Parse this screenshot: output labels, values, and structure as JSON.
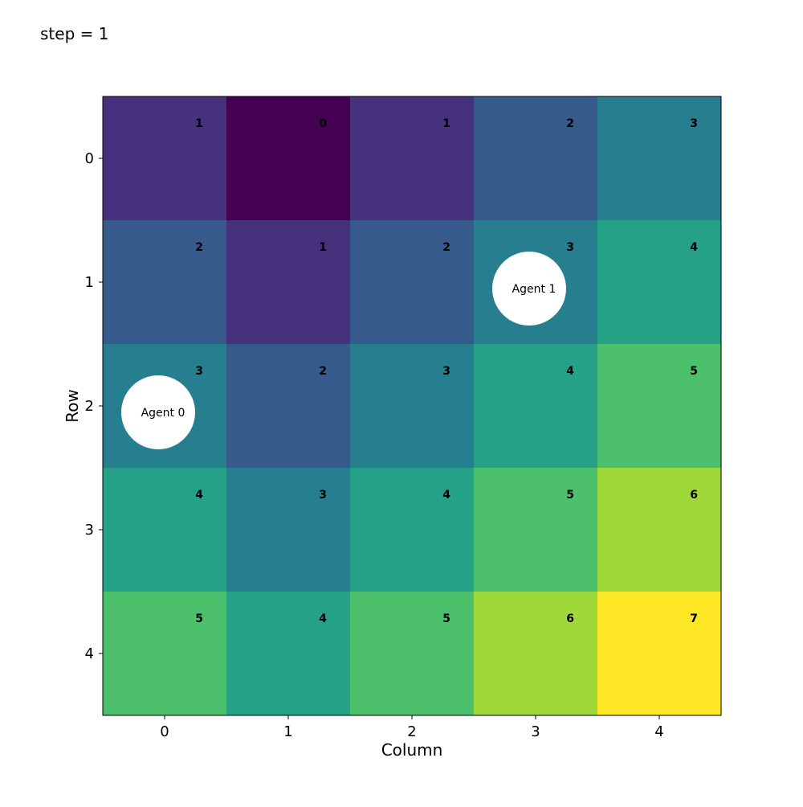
{
  "step_text": "step = 1",
  "chart_data": {
    "type": "heatmap",
    "title": "",
    "xlabel": "Column",
    "ylabel": "Row",
    "x_ticks": [
      "0",
      "1",
      "2",
      "3",
      "4"
    ],
    "y_ticks": [
      "0",
      "1",
      "2",
      "3",
      "4"
    ],
    "colormap": "viridis",
    "value_range": [
      0,
      7
    ],
    "values": [
      [
        1,
        0,
        1,
        2,
        3
      ],
      [
        2,
        1,
        2,
        3,
        4
      ],
      [
        3,
        2,
        3,
        4,
        5
      ],
      [
        4,
        3,
        4,
        5,
        6
      ],
      [
        5,
        4,
        5,
        6,
        7
      ]
    ],
    "agents": [
      {
        "name": "Agent 0",
        "row": 2,
        "col": 0
      },
      {
        "name": "Agent 1",
        "row": 1,
        "col": 3
      }
    ]
  }
}
